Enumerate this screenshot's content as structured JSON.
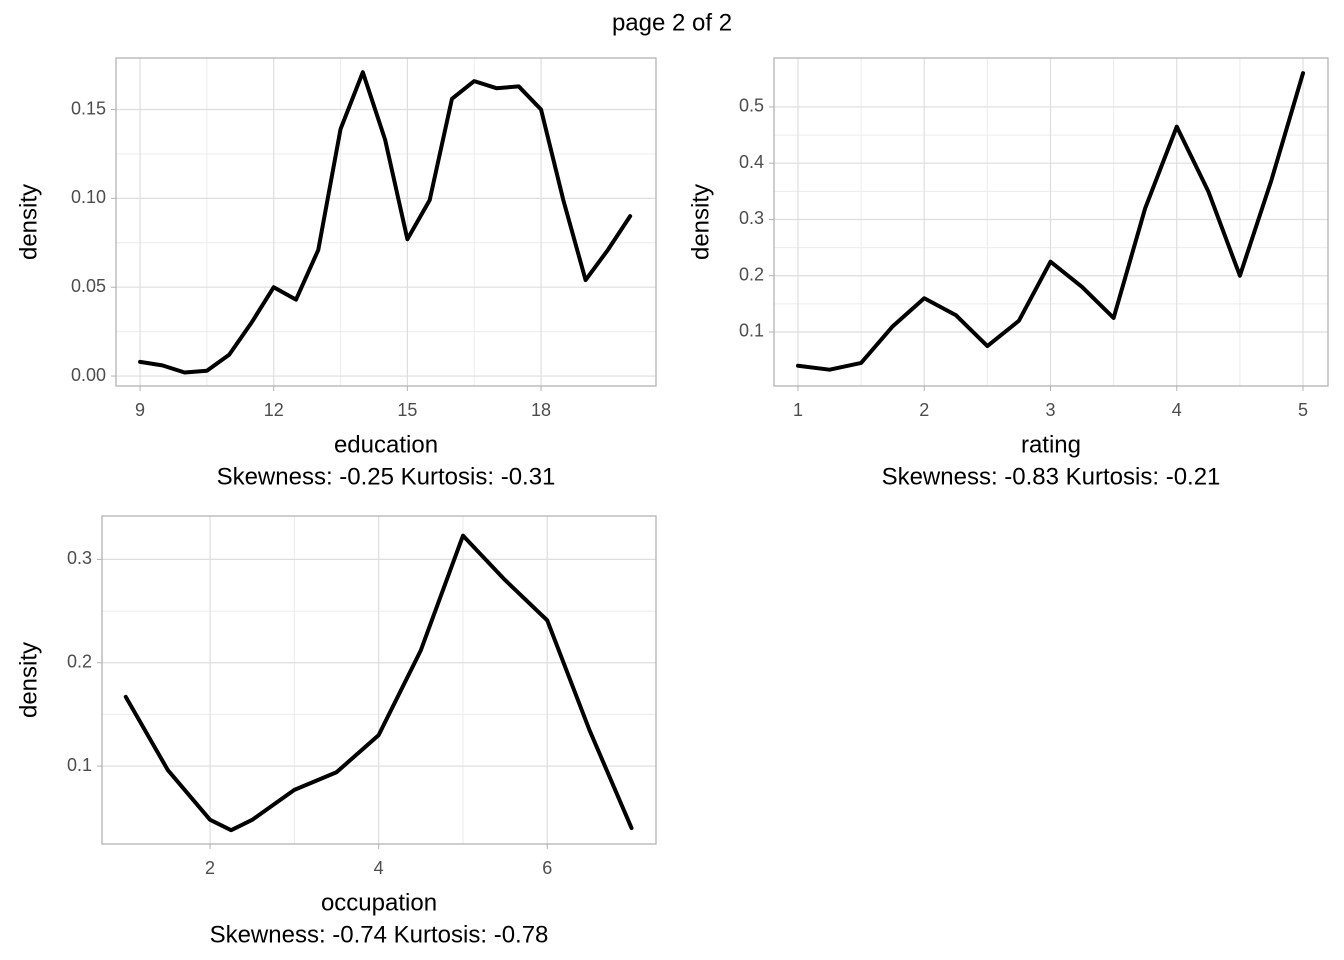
{
  "title": "page 2 of 2",
  "chart_data": [
    {
      "type": "line",
      "xlabel": "education",
      "ylabel": "density",
      "caption": "Skewness: -0.25 Kurtosis: -0.31",
      "x": [
        9,
        9.5,
        10,
        10.5,
        11,
        11.5,
        12,
        12.5,
        13,
        13.5,
        14,
        14.5,
        15,
        15.5,
        16,
        16.5,
        17,
        17.5,
        18,
        18.5,
        19,
        19.5,
        20
      ],
      "values": [
        0.008,
        0.006,
        0.002,
        0.003,
        0.012,
        0.03,
        0.05,
        0.043,
        0.071,
        0.139,
        0.171,
        0.133,
        0.077,
        0.099,
        0.156,
        0.166,
        0.162,
        0.163,
        0.15,
        0.099,
        0.054,
        0.071,
        0.09
      ],
      "color": "#000000",
      "xlim": [
        8.46,
        20.58
      ],
      "ylim": [
        -0.0056,
        0.179
      ],
      "xticks": [
        9,
        12,
        15,
        18
      ],
      "yticks": [
        {
          "value": 0,
          "label": "0.00"
        },
        0.05,
        {
          "value": 0.1,
          "label": "0.10"
        },
        0.15
      ],
      "grid": true
    },
    {
      "type": "line",
      "xlabel": "rating",
      "ylabel": "density",
      "caption": "Skewness: -0.83 Kurtosis: -0.21",
      "x": [
        1,
        1.25,
        1.5,
        1.75,
        2,
        2.25,
        2.5,
        2.75,
        3,
        3.25,
        3.5,
        3.75,
        4,
        4.25,
        4.5,
        4.75,
        5
      ],
      "values": [
        0.04,
        0.033,
        0.045,
        0.11,
        0.16,
        0.13,
        0.075,
        0.12,
        0.225,
        0.18,
        0.125,
        0.32,
        0.465,
        0.35,
        0.2,
        0.37,
        0.56
      ],
      "color": "#000000",
      "xlim": [
        0.81,
        5.198
      ],
      "ylim": [
        0.004,
        0.587
      ],
      "xticks": [
        1,
        2,
        3,
        4,
        5
      ],
      "yticks": [
        0.1,
        0.2,
        0.3,
        0.4,
        0.5
      ],
      "grid": true
    },
    {
      "type": "line",
      "xlabel": "occupation",
      "ylabel": "density",
      "caption": "Skewness: -0.74 Kurtosis: -0.78",
      "x": [
        1,
        1.5,
        2,
        2.25,
        2.5,
        3,
        3.5,
        4,
        4.5,
        5,
        5.5,
        6,
        6.5,
        7
      ],
      "values": [
        0.167,
        0.096,
        0.048,
        0.038,
        0.048,
        0.077,
        0.094,
        0.13,
        0.212,
        0.323,
        0.28,
        0.241,
        0.135,
        0.04
      ],
      "color": "#000000",
      "xlim": [
        0.718,
        7.29
      ],
      "ylim": [
        0.0246,
        0.342
      ],
      "xticks": [
        2,
        4,
        6
      ],
      "yticks": [
        0.1,
        0.2,
        0.3
      ],
      "grid": true
    }
  ]
}
